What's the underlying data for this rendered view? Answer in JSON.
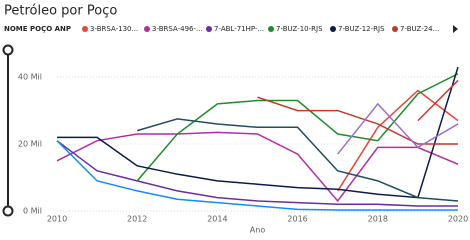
{
  "chart_data": {
    "type": "line",
    "title": "Petróleo por Poço",
    "legend_title": "NOME POÇO ANP",
    "x_label": "Ano",
    "x": [
      2010,
      2011,
      2012,
      2013,
      2014,
      2015,
      2016,
      2017,
      2018,
      2019,
      2020
    ],
    "xlim": [
      2010,
      2020
    ],
    "xticks": [
      2010,
      2012,
      2014,
      2016,
      2018,
      2020
    ],
    "ylim": [
      0,
      46
    ],
    "yticks": [
      {
        "value": 0,
        "label": "0 Mil"
      },
      {
        "value": 20,
        "label": "20 Mil"
      },
      {
        "value": 40,
        "label": "40 Mil"
      }
    ],
    "grid": true,
    "series": [
      {
        "name": "3-BRSA-130...",
        "color": "#e8443a",
        "values": [
          null,
          null,
          null,
          null,
          null,
          null,
          null,
          6,
          25,
          36,
          27
        ]
      },
      {
        "name": "3-BRSA-496-...",
        "color": "#b52ca3",
        "values": [
          15,
          21,
          23,
          23,
          23.5,
          23,
          17,
          3,
          19,
          19,
          14
        ]
      },
      {
        "name": "7-ABL-71HP-...",
        "color": "#6a2e9e",
        "values": [
          21,
          12,
          9,
          6,
          4,
          3,
          2.5,
          2,
          2,
          1.5,
          1.5
        ]
      },
      {
        "name": "7-BUZ-10-RJS",
        "color": "#1e8c2a",
        "values": [
          null,
          null,
          9,
          23,
          32,
          33,
          33,
          23,
          21,
          35,
          41
        ]
      },
      {
        "name": "7-BUZ-12-RJS",
        "color": "#0d1b4c",
        "values": [
          22,
          22,
          13.5,
          11,
          9,
          8,
          7,
          6.5,
          5,
          4,
          43
        ]
      },
      {
        "name": "7-BUZ-24...",
        "color": "#c0392b",
        "values": [
          null,
          null,
          null,
          null,
          null,
          34,
          30,
          30,
          26,
          20,
          20
        ]
      },
      {
        "color": "#118dff",
        "values": [
          21,
          9,
          6,
          3.5,
          2.5,
          1.5,
          0.5,
          0.3,
          0.3,
          0.3,
          0.3
        ]
      },
      {
        "color": "#1f4e5f",
        "values": [
          null,
          null,
          24,
          27.5,
          26,
          25,
          25,
          12,
          9,
          4,
          3
        ]
      },
      {
        "color": "#9b6fcf",
        "values": [
          null,
          null,
          null,
          null,
          null,
          null,
          null,
          17,
          32,
          19,
          26
        ]
      },
      {
        "color": "#d1372f",
        "values": [
          null,
          null,
          null,
          null,
          null,
          null,
          null,
          null,
          null,
          27,
          39
        ]
      }
    ]
  }
}
